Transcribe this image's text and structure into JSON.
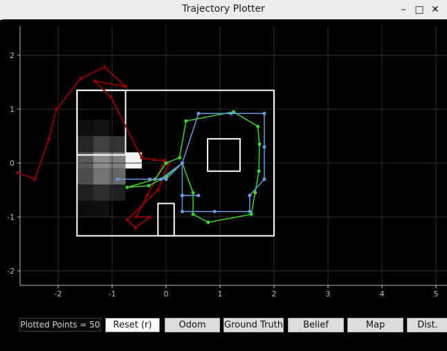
{
  "window": {
    "title": "Trajectory Plotter"
  },
  "plot": {
    "x_ticks": [
      "-2",
      "-1",
      "0",
      "1",
      "2",
      "3",
      "4",
      "5"
    ],
    "y_ticks": [
      "2",
      "1",
      "0",
      "-1",
      "-2"
    ],
    "colors": {
      "background": "#000000",
      "grid": "#2e2e2e",
      "map_walls": "#ffffff",
      "odom": "#8b0000",
      "ground_truth": "#3ed62b",
      "belief": "#6a9bdc",
      "region": "#2ab5b5"
    },
    "odom_path": [
      [
        -2.75,
        -0.18
      ],
      [
        -2.43,
        -0.3
      ],
      [
        -2.17,
        0.45
      ],
      [
        -2.03,
        1.0
      ],
      [
        -1.58,
        1.57
      ],
      [
        -1.14,
        1.78
      ],
      [
        -0.75,
        1.42
      ],
      [
        -1.32,
        1.52
      ],
      [
        -1.02,
        1.22
      ],
      [
        -0.45,
        0.1
      ],
      [
        -0.22,
        0.06
      ],
      [
        -0.02,
        0.05
      ],
      [
        -0.35,
        -0.6
      ],
      [
        -0.55,
        -1.0
      ],
      [
        -0.3,
        -1.0
      ],
      [
        -0.57,
        -1.2
      ],
      [
        -0.72,
        -1.05
      ],
      [
        -0.15,
        -0.5
      ],
      [
        0.05,
        0.0
      ]
    ],
    "ground_truth_path": [
      [
        0.0,
        0.0
      ],
      [
        0.25,
        0.1
      ],
      [
        0.37,
        0.78
      ],
      [
        1.25,
        0.95
      ],
      [
        1.7,
        0.68
      ],
      [
        1.73,
        0.35
      ],
      [
        1.72,
        -0.15
      ],
      [
        1.65,
        -0.55
      ],
      [
        1.58,
        -0.95
      ],
      [
        0.78,
        -1.1
      ],
      [
        0.5,
        -0.95
      ],
      [
        0.5,
        -0.55
      ],
      [
        0.3,
        0.0
      ],
      [
        0.0,
        -0.25
      ],
      [
        -0.32,
        -0.42
      ],
      [
        -0.72,
        -0.45
      ],
      [
        -0.2,
        -0.3
      ],
      [
        0.0,
        0.0
      ]
    ],
    "belief_path": [
      [
        -0.9,
        -0.3
      ],
      [
        -0.3,
        -0.3
      ],
      [
        0.0,
        -0.3
      ],
      [
        0.3,
        0.0
      ],
      [
        0.6,
        0.92
      ],
      [
        1.2,
        0.92
      ],
      [
        1.82,
        0.92
      ],
      [
        1.82,
        0.3
      ],
      [
        1.82,
        -0.3
      ],
      [
        1.55,
        -0.6
      ],
      [
        1.55,
        -0.9
      ],
      [
        0.9,
        -0.9
      ],
      [
        0.3,
        -0.9
      ],
      [
        0.3,
        -0.6
      ],
      [
        0.6,
        -0.6
      ],
      [
        0.3,
        -0.6
      ],
      [
        0.3,
        0.0
      ],
      [
        -0.1,
        -0.3
      ]
    ],
    "map_boxes": [
      [
        -1.65,
        -1.35,
        2.0,
        1.35
      ],
      [
        0.77,
        -0.15,
        1.37,
        0.45
      ],
      [
        -0.15,
        -1.35,
        0.15,
        -0.75
      ],
      [
        -1.65,
        0.15,
        -0.75,
        1.35
      ]
    ],
    "region_box": [
      -1.65,
      0.15,
      -0.75,
      1.35
    ],
    "heat_cells": [
      [
        -1.65,
        -0.1,
        0.35
      ],
      [
        -1.35,
        -0.1,
        0.55
      ],
      [
        -1.05,
        -0.1,
        0.5
      ],
      [
        -0.75,
        -0.1,
        0.95
      ],
      [
        -1.65,
        -0.4,
        0.3
      ],
      [
        -1.35,
        -0.4,
        0.45
      ],
      [
        -1.05,
        -0.4,
        0.4
      ],
      [
        -1.65,
        0.2,
        0.15
      ],
      [
        -1.35,
        0.2,
        0.25
      ],
      [
        -1.05,
        0.2,
        0.2
      ],
      [
        -1.65,
        -0.7,
        0.12
      ],
      [
        -1.35,
        -0.7,
        0.18
      ],
      [
        -1.05,
        -0.7,
        0.12
      ],
      [
        -1.65,
        0.5,
        0.06
      ],
      [
        -1.35,
        0.5,
        0.08
      ],
      [
        -1.65,
        -1.0,
        0.05
      ],
      [
        -1.35,
        -1.0,
        0.06
      ]
    ],
    "xlim": [
      -2.75,
      5.2
    ],
    "ylim": [
      -2.3,
      2.5
    ]
  },
  "toolbar": {
    "counter_label": "Plotted Points = 50",
    "buttons": [
      {
        "name": "reset-button",
        "label": "Reset (r)",
        "primary": true
      },
      {
        "name": "odom-button",
        "label": "Odom"
      },
      {
        "name": "ground-truth-button",
        "label": "Ground Truth"
      },
      {
        "name": "belief-button",
        "label": "Belief"
      },
      {
        "name": "map-button",
        "label": "Map"
      },
      {
        "name": "dist-button",
        "label": "Dist."
      }
    ]
  },
  "controls": {
    "minimize": "–",
    "maximize": "□",
    "close": "✕"
  }
}
